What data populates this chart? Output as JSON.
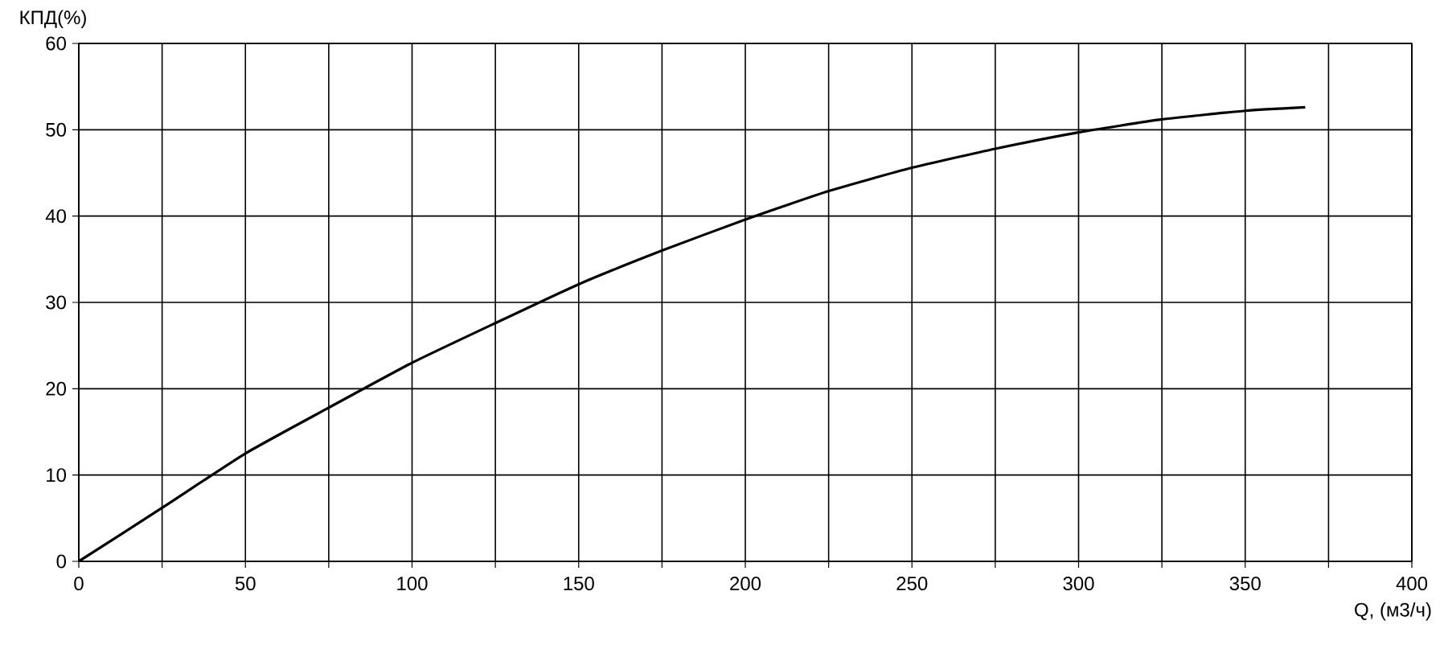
{
  "chart_data": {
    "type": "line",
    "xlabel": "Q, (м3/ч)",
    "ylabel": "КПД(%)",
    "x": [
      0,
      25,
      50,
      75,
      100,
      125,
      150,
      175,
      200,
      225,
      250,
      275,
      300,
      325,
      350,
      368
    ],
    "series": [
      {
        "color": "#000000",
        "values": [
          0,
          6.2,
          12.5,
          17.8,
          23,
          27.6,
          32.1,
          36,
          39.6,
          42.9,
          45.6,
          47.8,
          49.7,
          51.2,
          52.2,
          52.6
        ]
      }
    ],
    "xlim": [
      0,
      400
    ],
    "ylim": [
      0,
      60
    ],
    "xticks": [
      0,
      {
        "value": 25,
        "label": null
      },
      50,
      {
        "value": 75,
        "label": null
      },
      100,
      {
        "value": 125,
        "label": null
      },
      150,
      {
        "value": 175,
        "label": null
      },
      200,
      {
        "value": 225,
        "label": null
      },
      250,
      {
        "value": 275,
        "label": null
      },
      300,
      {
        "value": 325,
        "label": null
      },
      350,
      {
        "value": 375,
        "label": null
      },
      400
    ],
    "yticks": [
      0,
      10,
      20,
      30,
      40,
      50,
      60
    ],
    "grid": true
  }
}
